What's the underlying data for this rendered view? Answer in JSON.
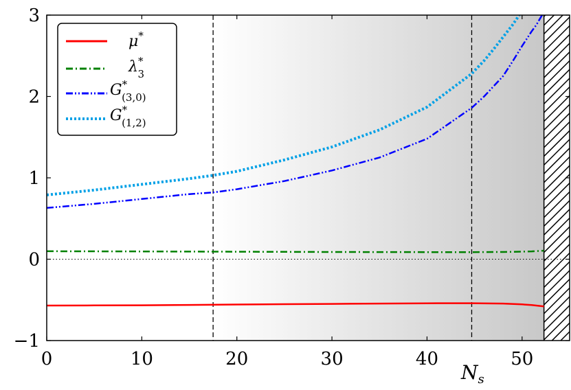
{
  "chart_data": {
    "type": "line",
    "title": "",
    "xlabel": "N_s",
    "ylabel": "",
    "xlim": [
      0,
      55
    ],
    "ylim": [
      -1,
      3
    ],
    "xticks": [
      0,
      10,
      20,
      30,
      40,
      50
    ],
    "yticks": [
      -1,
      0,
      1,
      2,
      3
    ],
    "xtick_labels": [
      "0",
      "10",
      "20",
      "30",
      "40",
      "50"
    ],
    "ytick_labels": [
      "−1",
      "0",
      "1",
      "2",
      "3"
    ],
    "grid": false,
    "legend_position": "top-left",
    "vertical_dashed_lines": [
      17.5,
      44.7
    ],
    "horizontal_dotted_line": 0,
    "shaded_region": {
      "from": 17.5,
      "to": 52.3,
      "note": "gradient from white to gray"
    },
    "hatched_region": {
      "from": 52.3,
      "to": 55
    },
    "series": [
      {
        "name": "μ*",
        "color": "#ff0000",
        "style": "solid",
        "x": [
          0,
          5,
          10,
          15,
          20,
          25,
          30,
          35,
          40,
          44.7,
          48,
          50,
          51,
          52.3
        ],
        "y": [
          -0.57,
          -0.568,
          -0.566,
          -0.562,
          -0.557,
          -0.553,
          -0.549,
          -0.545,
          -0.542,
          -0.541,
          -0.545,
          -0.555,
          -0.563,
          -0.58
        ]
      },
      {
        "name": "λ₃*",
        "color": "#008000",
        "style": "dashdot",
        "x": [
          0,
          10,
          20,
          30,
          40,
          44.7,
          48,
          50,
          51,
          52.3
        ],
        "y": [
          0.098,
          0.095,
          0.092,
          0.089,
          0.087,
          0.087,
          0.089,
          0.093,
          0.096,
          0.105
        ]
      },
      {
        "name": "G*(3,0)",
        "color": "#0000ff",
        "style": "dashdotdot",
        "x": [
          0,
          5,
          10,
          15,
          17.5,
          20,
          25,
          30,
          35,
          40,
          44.7,
          46,
          48,
          49,
          50,
          51,
          51.5,
          52.1
        ],
        "y": [
          0.63,
          0.68,
          0.74,
          0.8,
          0.82,
          0.86,
          0.96,
          1.09,
          1.25,
          1.48,
          1.86,
          2.0,
          2.25,
          2.43,
          2.62,
          2.8,
          2.88,
          3.0
        ]
      },
      {
        "name": "G*(1,2)",
        "color": "#00a0e6",
        "style": "dotted",
        "x": [
          0,
          5,
          10,
          15,
          17.5,
          20,
          25,
          30,
          35,
          40,
          44.7,
          46,
          47,
          48,
          49,
          49.7
        ],
        "y": [
          0.79,
          0.85,
          0.92,
          0.99,
          1.03,
          1.08,
          1.22,
          1.38,
          1.59,
          1.87,
          2.28,
          2.44,
          2.58,
          2.73,
          2.88,
          3.0
        ]
      }
    ]
  },
  "legend": {
    "entries": [
      {
        "label": "μ",
        "sup": "*",
        "sub": ""
      },
      {
        "label": "λ",
        "sup": "*",
        "sub": "3"
      },
      {
        "label": "G",
        "sup": "*",
        "sub": "(3,0)"
      },
      {
        "label": "G",
        "sup": "*",
        "sub": "(1,2)"
      }
    ]
  }
}
